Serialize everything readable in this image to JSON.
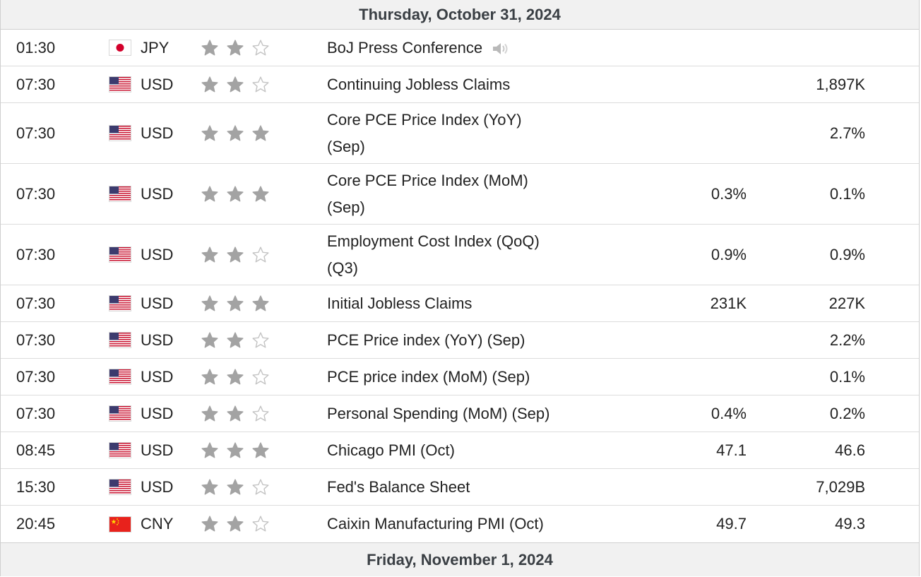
{
  "days": [
    {
      "date_label": "Thursday, October 31, 2024"
    },
    {
      "date_label": "Friday, November 1, 2024"
    }
  ],
  "events": [
    {
      "time": "01:30",
      "flag": "jp-flag-icon",
      "currency": "JPY",
      "importance": 2,
      "event": "BoJ Press Conference",
      "audio": true,
      "forecast": "",
      "previous": ""
    },
    {
      "time": "07:30",
      "flag": "us-flag-icon",
      "currency": "USD",
      "importance": 2,
      "event": "Continuing Jobless Claims",
      "audio": false,
      "forecast": "",
      "previous": "1,897K"
    },
    {
      "time": "07:30",
      "flag": "us-flag-icon",
      "currency": "USD",
      "importance": 3,
      "event": "Core PCE Price Index (YoY)\n(Sep)",
      "audio": false,
      "forecast": "",
      "previous": "2.7%"
    },
    {
      "time": "07:30",
      "flag": "us-flag-icon",
      "currency": "USD",
      "importance": 3,
      "event": "Core PCE Price Index (MoM)\n(Sep)",
      "audio": false,
      "forecast": "0.3%",
      "previous": "0.1%"
    },
    {
      "time": "07:30",
      "flag": "us-flag-icon",
      "currency": "USD",
      "importance": 2,
      "event": "Employment Cost Index (QoQ)\n(Q3)",
      "audio": false,
      "forecast": "0.9%",
      "previous": "0.9%"
    },
    {
      "time": "07:30",
      "flag": "us-flag-icon",
      "currency": "USD",
      "importance": 3,
      "event": "Initial Jobless Claims",
      "audio": false,
      "forecast": "231K",
      "previous": "227K"
    },
    {
      "time": "07:30",
      "flag": "us-flag-icon",
      "currency": "USD",
      "importance": 2,
      "event": "PCE Price index (YoY) (Sep)",
      "audio": false,
      "forecast": "",
      "previous": "2.2%"
    },
    {
      "time": "07:30",
      "flag": "us-flag-icon",
      "currency": "USD",
      "importance": 2,
      "event": "PCE price index (MoM) (Sep)",
      "audio": false,
      "forecast": "",
      "previous": "0.1%"
    },
    {
      "time": "07:30",
      "flag": "us-flag-icon",
      "currency": "USD",
      "importance": 2,
      "event": "Personal Spending (MoM) (Sep)",
      "audio": false,
      "forecast": "0.4%",
      "previous": "0.2%"
    },
    {
      "time": "08:45",
      "flag": "us-flag-icon",
      "currency": "USD",
      "importance": 3,
      "event": "Chicago PMI (Oct)",
      "audio": false,
      "forecast": "47.1",
      "previous": "46.6"
    },
    {
      "time": "15:30",
      "flag": "us-flag-icon",
      "currency": "USD",
      "importance": 2,
      "event": "Fed's Balance Sheet",
      "audio": false,
      "forecast": "",
      "previous": "7,029B"
    },
    {
      "time": "20:45",
      "flag": "cn-flag-icon",
      "currency": "CNY",
      "importance": 2,
      "event": "Caixin Manufacturing PMI (Oct)",
      "audio": false,
      "forecast": "49.7",
      "previous": "49.3"
    }
  ],
  "colors": {
    "star_filled": "#a3a3a3",
    "star_empty": "#c4c4c4",
    "header_bg": "#f1f1f1",
    "header_text": "#3a3f44"
  }
}
